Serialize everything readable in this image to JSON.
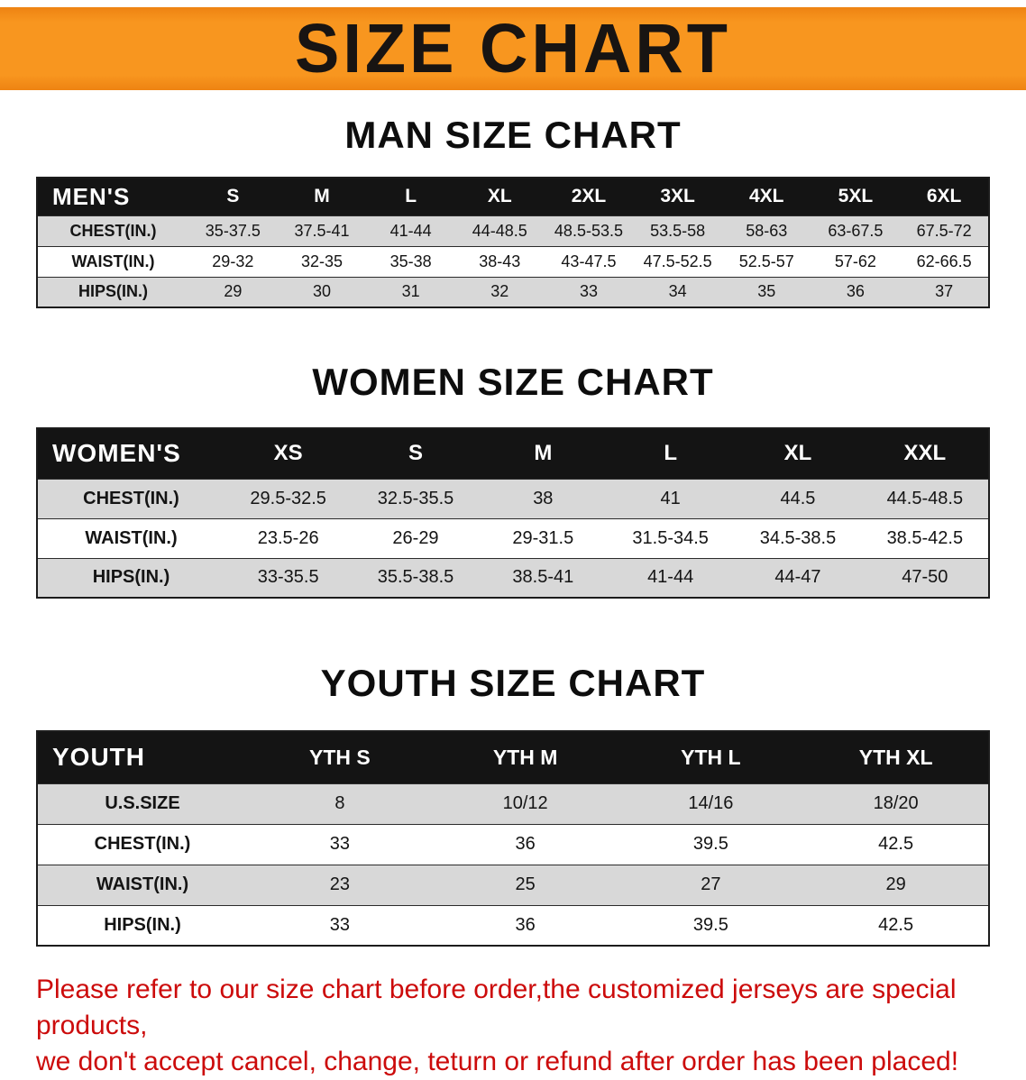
{
  "banner": {
    "title": "SIZE CHART"
  },
  "sections": [
    {
      "heading": "MAN SIZE CHART",
      "table": {
        "header": [
          "MEN'S",
          "S",
          "M",
          "L",
          "XL",
          "2XL",
          "3XL",
          "4XL",
          "5XL",
          "6XL"
        ],
        "rows": [
          {
            "label": "CHEST(IN.)",
            "values": [
              "35-37.5",
              "37.5-41",
              "41-44",
              "44-48.5",
              "48.5-53.5",
              "53.5-58",
              "58-63",
              "63-67.5",
              "67.5-72"
            ]
          },
          {
            "label": "WAIST(IN.)",
            "values": [
              "29-32",
              "32-35",
              "35-38",
              "38-43",
              "43-47.5",
              "47.5-52.5",
              "52.5-57",
              "57-62",
              "62-66.5"
            ]
          },
          {
            "label": "HIPS(IN.)",
            "values": [
              "29",
              "30",
              "31",
              "32",
              "33",
              "34",
              "35",
              "36",
              "37"
            ]
          }
        ]
      }
    },
    {
      "heading": "WOMEN SIZE CHART",
      "table": {
        "header": [
          "WOMEN'S",
          "XS",
          "S",
          "M",
          "L",
          "XL",
          "XXL"
        ],
        "rows": [
          {
            "label": "CHEST(IN.)",
            "values": [
              "29.5-32.5",
              "32.5-35.5",
              "38",
              "41",
              "44.5",
              "44.5-48.5"
            ]
          },
          {
            "label": "WAIST(IN.)",
            "values": [
              "23.5-26",
              "26-29",
              "29-31.5",
              "31.5-34.5",
              "34.5-38.5",
              "38.5-42.5"
            ]
          },
          {
            "label": "HIPS(IN.)",
            "values": [
              "33-35.5",
              "35.5-38.5",
              "38.5-41",
              "41-44",
              "44-47",
              "47-50"
            ]
          }
        ]
      }
    },
    {
      "heading": "YOUTH SIZE CHART",
      "table": {
        "header": [
          "YOUTH",
          "YTH S",
          "YTH M",
          "YTH L",
          "YTH XL"
        ],
        "rows": [
          {
            "label": "U.S.SIZE",
            "values": [
              "8",
              "10/12",
              "14/16",
              "18/20"
            ]
          },
          {
            "label": "CHEST(IN.)",
            "values": [
              "33",
              "36",
              "39.5",
              "42.5"
            ]
          },
          {
            "label": "WAIST(IN.)",
            "values": [
              "23",
              "25",
              "27",
              "29"
            ]
          },
          {
            "label": "HIPS(IN.)",
            "values": [
              "33",
              "36",
              "39.5",
              "42.5"
            ]
          }
        ]
      }
    }
  ],
  "footer": {
    "line1": "Please refer to our size chart before order,the customized jerseys are special products,",
    "line2": "we don't accept cancel, change, teturn or refund after order has been placed!"
  },
  "colors": {
    "banner_bg": "#f8961f",
    "banner_text": "#181412",
    "table_header_bg": "#141414",
    "table_header_text": "#ffffff",
    "row_alt_bg": "#d8d8d8",
    "note_red": "#cc0b0b"
  }
}
